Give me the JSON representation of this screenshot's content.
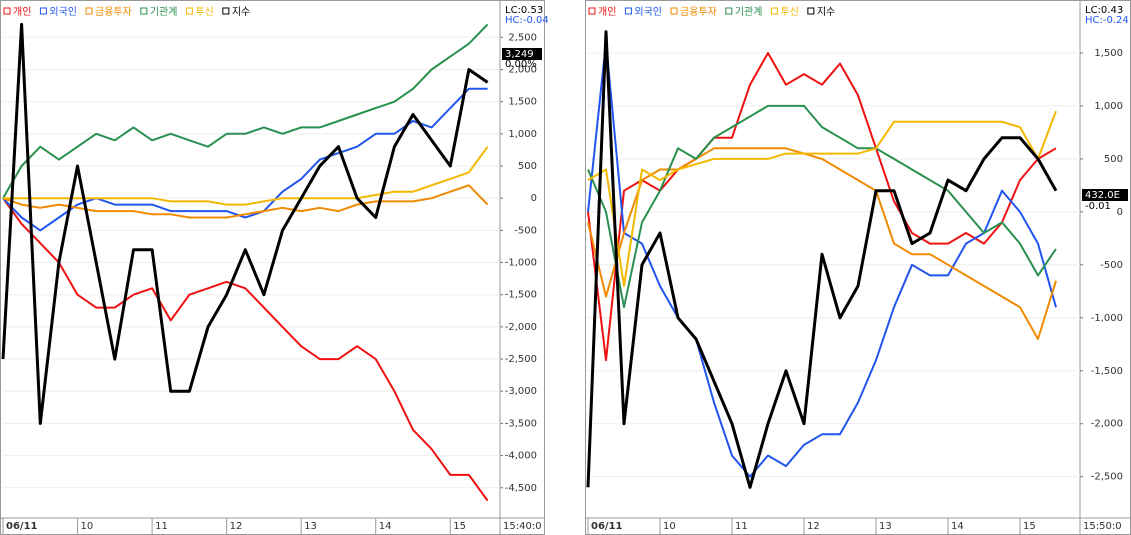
{
  "chart_data": [
    {
      "type": "line",
      "x": [
        9,
        9.25,
        9.5,
        9.75,
        10,
        10.25,
        10.5,
        10.75,
        11,
        11.25,
        11.5,
        11.75,
        12,
        12.25,
        12.5,
        12.75,
        13,
        13.25,
        13.5,
        13.75,
        14,
        14.25,
        14.5,
        14.75,
        15,
        15.25,
        15.5
      ],
      "xlim": [
        9,
        15.667
      ],
      "xticks": [
        {
          "value": 9,
          "label": "06/11"
        },
        10,
        11,
        12,
        13,
        14,
        15,
        {
          "value": 15.667,
          "label": "15:40:0"
        }
      ],
      "ylim": [
        -4970,
        2800
      ],
      "yticks": [
        {
          "value": 2500,
          "label": "2,500"
        },
        {
          "value": 2000,
          "label": "2,000"
        },
        {
          "value": 1500,
          "label": "1,500"
        },
        {
          "value": 1000,
          "label": "1,000"
        },
        500,
        0,
        -500,
        {
          "value": -1000,
          "label": "-1,000"
        },
        {
          "value": -1500,
          "label": "-1,500"
        },
        {
          "value": -2000,
          "label": "-2,000"
        },
        {
          "value": -2500,
          "label": "-2,500"
        },
        {
          "value": -3000,
          "label": "-3,000"
        },
        {
          "value": -3500,
          "label": "-3,500"
        },
        {
          "value": -4000,
          "label": "-4,000"
        },
        {
          "value": -4500,
          "label": "-4,500"
        }
      ],
      "grid": true,
      "annotations": [
        "LC:0.53",
        "HC:-0.04",
        "3,249",
        "0.00%"
      ],
      "series": [
        {
          "name": "개인",
          "color": "#ee1111",
          "values": [
            0,
            -400,
            -700,
            -1000,
            -1500,
            -1700,
            -1700,
            -1500,
            -1400,
            -1900,
            -1500,
            -1400,
            -1300,
            -1400,
            -1700,
            -2000,
            -2300,
            -2500,
            -2500,
            -2300,
            -2500,
            -3000,
            -3600,
            -3900,
            -4300,
            -4300,
            -4700
          ]
        },
        {
          "name": "외국인",
          "color": "#2255ee",
          "values": [
            0,
            -300,
            -500,
            -300,
            -100,
            0,
            -100,
            -100,
            -100,
            -200,
            -200,
            -200,
            -200,
            -300,
            -200,
            100,
            300,
            600,
            700,
            800,
            1000,
            1000,
            1200,
            1100,
            1400,
            1700,
            1700
          ]
        },
        {
          "name": "금융투자",
          "color": "#f08a00",
          "values": [
            0,
            -100,
            -150,
            -100,
            -150,
            -200,
            -200,
            -200,
            -250,
            -250,
            -300,
            -300,
            -300,
            -250,
            -200,
            -150,
            -200,
            -150,
            -200,
            -100,
            -50,
            -50,
            -50,
            0,
            100,
            200,
            -100
          ]
        },
        {
          "name": "기관계",
          "color": "#2a9050",
          "values": [
            0,
            500,
            800,
            600,
            800,
            1000,
            900,
            1100,
            900,
            1000,
            900,
            800,
            1000,
            1000,
            1100,
            1000,
            1100,
            1100,
            1200,
            1300,
            1400,
            1500,
            1700,
            2000,
            2200,
            2400,
            2700
          ]
        },
        {
          "name": "투신",
          "color": "#f5b800",
          "values": [
            0,
            0,
            0,
            0,
            0,
            0,
            0,
            0,
            0,
            -50,
            -50,
            -50,
            -100,
            -100,
            -50,
            0,
            0,
            0,
            0,
            0,
            50,
            100,
            100,
            200,
            300,
            400,
            800
          ]
        },
        {
          "name": "지수",
          "color": "#000000",
          "values": [
            -2500,
            2700,
            -3500,
            -1000,
            500,
            -1000,
            -2500,
            -800,
            -800,
            -3000,
            -3000,
            -2000,
            -1500,
            -800,
            -1500,
            -500,
            0,
            500,
            800,
            0,
            -300,
            800,
            1300,
            900,
            500,
            2000,
            1800
          ]
        }
      ]
    },
    {
      "type": "line",
      "x": [
        9,
        9.25,
        9.5,
        9.75,
        10,
        10.25,
        10.5,
        10.75,
        11,
        11.25,
        11.5,
        11.75,
        12,
        12.25,
        12.5,
        12.75,
        13,
        13.25,
        13.5,
        13.75,
        14,
        14.25,
        14.5,
        14.75,
        15,
        15.25,
        15.5
      ],
      "xlim": [
        9,
        15.833
      ],
      "xticks": [
        {
          "value": 9,
          "label": "06/11"
        },
        10,
        11,
        12,
        13,
        14,
        15,
        {
          "value": 15.833,
          "label": "15:50:0"
        }
      ],
      "ylim": [
        -2890,
        1830
      ],
      "yticks": [
        {
          "value": 1500,
          "label": "1,500"
        },
        {
          "value": 1000,
          "label": "1,000"
        },
        500,
        0,
        -500,
        {
          "value": -1000,
          "label": "-1,000"
        },
        {
          "value": -1500,
          "label": "-1,500"
        },
        {
          "value": -2000,
          "label": "-2,000"
        },
        {
          "value": -2500,
          "label": "-2,500"
        }
      ],
      "grid": true,
      "annotations": [
        "LC:0.43",
        "HC:-0.24",
        "432.0E",
        "-0.01"
      ],
      "series": [
        {
          "name": "개인",
          "color": "#ee1111",
          "values": [
            0,
            -1400,
            200,
            300,
            200,
            400,
            500,
            700,
            700,
            1200,
            1500,
            1200,
            1300,
            1200,
            1400,
            1100,
            600,
            100,
            -200,
            -300,
            -300,
            -200,
            -300,
            -100,
            300,
            500,
            600
          ]
        },
        {
          "name": "외국인",
          "color": "#2255ee",
          "values": [
            0,
            1600,
            -200,
            -300,
            -700,
            -1000,
            -1200,
            -1800,
            -2300,
            -2500,
            -2300,
            -2400,
            -2200,
            -2100,
            -2100,
            -1800,
            -1400,
            -900,
            -500,
            -600,
            -600,
            -300,
            -200,
            200,
            0,
            -300,
            -900
          ]
        },
        {
          "name": "금융투자",
          "color": "#f08a00",
          "values": [
            -100,
            -800,
            -200,
            300,
            400,
            400,
            500,
            600,
            600,
            600,
            600,
            600,
            550,
            500,
            400,
            300,
            200,
            -300,
            -400,
            -400,
            -500,
            -600,
            -700,
            -800,
            -900,
            -1200,
            -650
          ]
        },
        {
          "name": "기관계",
          "color": "#2a9050",
          "values": [
            400,
            0,
            -900,
            -100,
            200,
            600,
            500,
            700,
            800,
            900,
            1000,
            1000,
            1000,
            800,
            700,
            600,
            600,
            500,
            400,
            300,
            200,
            0,
            -200,
            -100,
            -300,
            -600,
            -350
          ]
        },
        {
          "name": "투신",
          "color": "#f5b800",
          "values": [
            300,
            400,
            -700,
            400,
            300,
            400,
            450,
            500,
            500,
            500,
            500,
            550,
            550,
            550,
            550,
            550,
            600,
            850,
            850,
            850,
            850,
            850,
            850,
            850,
            800,
            500,
            950
          ]
        },
        {
          "name": "지수",
          "color": "#000000",
          "values": [
            -2600,
            1700,
            -2000,
            -500,
            -200,
            -1000,
            -1200,
            -1600,
            -2000,
            -2600,
            -2000,
            -1500,
            -2000,
            -400,
            -1000,
            -700,
            200,
            200,
            -300,
            -200,
            300,
            200,
            500,
            700,
            700,
            500,
            200
          ]
        }
      ]
    }
  ]
}
